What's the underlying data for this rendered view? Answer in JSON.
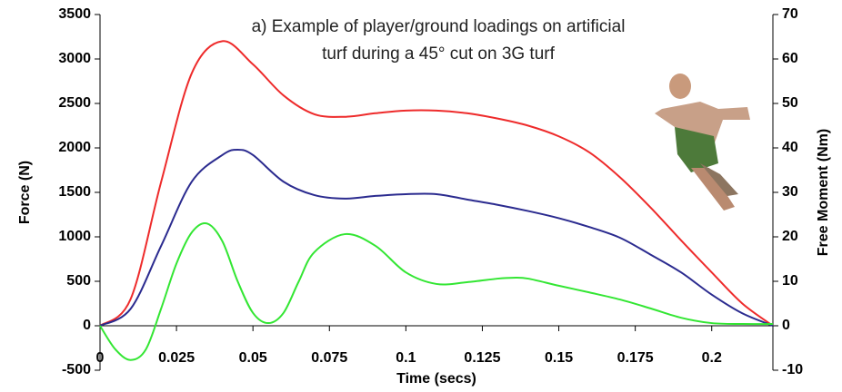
{
  "chart_data": {
    "type": "line",
    "title": [
      "a) Example of player/ground loadings on artificial",
      "turf during a 45° cut on 3G turf"
    ],
    "x_label": "Time (secs)",
    "y_label": "Force (N)",
    "y2_label": "Free Moment (Nm)",
    "xlim": [
      0,
      0.22
    ],
    "xticks": [
      0,
      0.025,
      0.05,
      0.075,
      0.1,
      0.125,
      0.15,
      0.175,
      0.2
    ],
    "ylim": [
      -500,
      3500
    ],
    "yticks": [
      -500,
      0,
      500,
      1000,
      1500,
      2000,
      2500,
      3000,
      3500
    ],
    "y2lim": [
      -10,
      70
    ],
    "y2ticks": [
      -10,
      0,
      10,
      20,
      30,
      40,
      50,
      60,
      70
    ],
    "series": [
      {
        "color": "#ee2b2b",
        "x": [
          0,
          0.01,
          0.02,
          0.03,
          0.04,
          0.05,
          0.06,
          0.07,
          0.08,
          0.09,
          0.1,
          0.11,
          0.12,
          0.13,
          0.14,
          0.15,
          0.16,
          0.17,
          0.18,
          0.19,
          0.2,
          0.21,
          0.22
        ],
        "values": [
          0,
          300,
          1620,
          2840,
          3200,
          2940,
          2590,
          2380,
          2350,
          2390,
          2420,
          2420,
          2390,
          2330,
          2250,
          2130,
          1950,
          1670,
          1330,
          960,
          600,
          250,
          0
        ]
      },
      {
        "color": "#2b2b8f",
        "x": [
          0,
          0.01,
          0.02,
          0.03,
          0.04,
          0.045,
          0.05,
          0.06,
          0.07,
          0.08,
          0.09,
          0.1,
          0.11,
          0.12,
          0.13,
          0.14,
          0.15,
          0.16,
          0.17,
          0.18,
          0.19,
          0.2,
          0.21,
          0.22
        ],
        "values": [
          0,
          190,
          900,
          1620,
          1920,
          1980,
          1920,
          1620,
          1470,
          1430,
          1460,
          1480,
          1480,
          1420,
          1360,
          1290,
          1210,
          1110,
          990,
          800,
          600,
          350,
          140,
          0
        ]
      },
      {
        "color": "#33e633",
        "axis": "y2",
        "x": [
          0,
          0.005,
          0.01,
          0.015,
          0.02,
          0.025,
          0.03,
          0.035,
          0.04,
          0.045,
          0.05,
          0.055,
          0.06,
          0.065,
          0.07,
          0.08,
          0.09,
          0.1,
          0.11,
          0.12,
          0.13,
          0.135,
          0.14,
          0.15,
          0.16,
          0.17,
          0.18,
          0.19,
          0.2,
          0.21,
          0.22
        ],
        "values": [
          0,
          -5.3,
          -7.7,
          -5.3,
          3.9,
          14,
          21,
          23,
          19,
          10,
          2.9,
          0.6,
          2.9,
          10,
          16.5,
          20.6,
          18,
          12,
          9.4,
          9.8,
          10.6,
          10.8,
          10.6,
          9,
          7.5,
          5.9,
          3.9,
          1.8,
          0.6,
          0.4,
          0.4
        ]
      }
    ]
  }
}
